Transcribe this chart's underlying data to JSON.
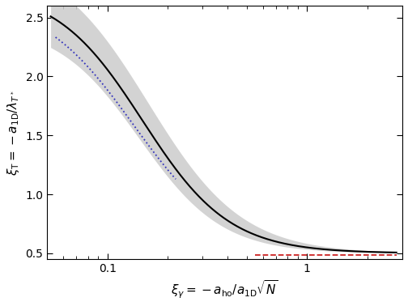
{
  "xlim": [
    0.05,
    3.0
  ],
  "ylim": [
    0.45,
    2.6
  ],
  "background_color": "#ffffff",
  "lda_color": "#000000",
  "lda_fill_color": "#cccccc",
  "blue_dot_color": "#3333bb",
  "red_dash_color": "#cc2222",
  "lda_A": 2.25,
  "lda_x0": 0.15,
  "lda_n": 2.0,
  "upper_A": 2.55,
  "upper_x0": 0.16,
  "upper_n": 1.85,
  "lower_A": 1.95,
  "lower_x0": 0.144,
  "lower_n": 2.1,
  "blue_A": 2.18,
  "blue_x0": 0.135,
  "blue_n": 1.85,
  "blue_xmin": 0.055,
  "blue_xmax": 0.22,
  "red_yval": 0.484,
  "red_xmin": 0.55,
  "red_xmax": 2.8,
  "yticks": [
    0.5,
    1.0,
    1.5,
    2.0,
    2.5
  ],
  "xticks": [
    0.1,
    1.0
  ]
}
